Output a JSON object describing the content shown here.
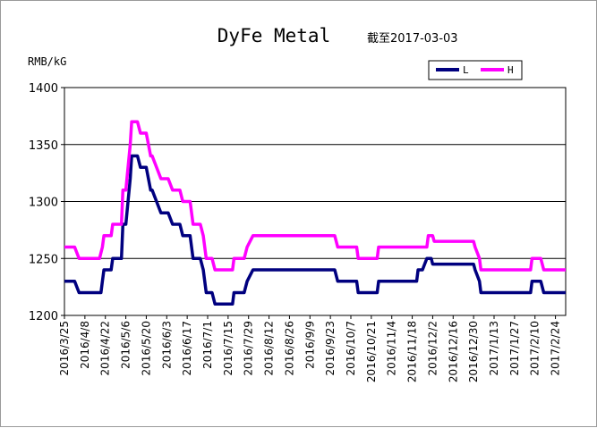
{
  "chart_data": {
    "type": "line",
    "title": "DyFe Metal",
    "as_of": "截至2017-03-03",
    "ylabel": "RMB/kG",
    "ylim": [
      1200,
      1400
    ],
    "yticks": [
      1200,
      1250,
      1300,
      1350,
      1400
    ],
    "grid": "horizontal",
    "legend": "top-right",
    "x_labels": [
      "2016/3/25",
      "2016/4/8",
      "2016/4/22",
      "2016/5/6",
      "2016/5/20",
      "2016/6/3",
      "2016/6/17",
      "2016/7/1",
      "2016/7/15",
      "2016/7/29",
      "2016/8/12",
      "2016/8/26",
      "2016/9/9",
      "2016/9/23",
      "2016/10/7",
      "2016/10/21",
      "2016/11/4",
      "2016/11/18",
      "2016/12/2",
      "2016/12/16",
      "2016/12/30",
      "2017/1/13",
      "2017/1/27",
      "2017/2/10",
      "2017/2/24"
    ],
    "x_range": [
      "2016-03-25",
      "2017-03-03"
    ],
    "series": [
      {
        "name": "L",
        "color": "#00007f",
        "points": [
          [
            "2016-03-25",
            1230
          ],
          [
            "2016-04-01",
            1230
          ],
          [
            "2016-04-04",
            1220
          ],
          [
            "2016-04-19",
            1220
          ],
          [
            "2016-04-20",
            1230
          ],
          [
            "2016-04-21",
            1240
          ],
          [
            "2016-04-26",
            1240
          ],
          [
            "2016-04-27",
            1250
          ],
          [
            "2016-05-03",
            1250
          ],
          [
            "2016-05-04",
            1280
          ],
          [
            "2016-05-06",
            1280
          ],
          [
            "2016-05-09",
            1320
          ],
          [
            "2016-05-10",
            1340
          ],
          [
            "2016-05-14",
            1340
          ],
          [
            "2016-05-16",
            1330
          ],
          [
            "2016-05-20",
            1330
          ],
          [
            "2016-05-23",
            1310
          ],
          [
            "2016-05-24",
            1310
          ],
          [
            "2016-05-27",
            1300
          ],
          [
            "2016-05-30",
            1290
          ],
          [
            "2016-06-04",
            1290
          ],
          [
            "2016-06-07",
            1280
          ],
          [
            "2016-06-12",
            1280
          ],
          [
            "2016-06-14",
            1270
          ],
          [
            "2016-06-19",
            1270
          ],
          [
            "2016-06-21",
            1250
          ],
          [
            "2016-06-26",
            1250
          ],
          [
            "2016-06-28",
            1240
          ],
          [
            "2016-06-30",
            1220
          ],
          [
            "2016-07-04",
            1220
          ],
          [
            "2016-07-06",
            1210
          ],
          [
            "2016-07-18",
            1210
          ],
          [
            "2016-07-19",
            1220
          ],
          [
            "2016-07-26",
            1220
          ],
          [
            "2016-07-28",
            1230
          ],
          [
            "2016-08-01",
            1240
          ],
          [
            "2016-09-26",
            1240
          ],
          [
            "2016-09-28",
            1230
          ],
          [
            "2016-10-11",
            1230
          ],
          [
            "2016-10-12",
            1220
          ],
          [
            "2016-10-25",
            1220
          ],
          [
            "2016-10-26",
            1230
          ],
          [
            "2016-11-21",
            1230
          ],
          [
            "2016-11-22",
            1240
          ],
          [
            "2016-11-25",
            1240
          ],
          [
            "2016-11-28",
            1250
          ],
          [
            "2016-12-01",
            1250
          ],
          [
            "2016-12-02",
            1245
          ],
          [
            "2016-12-30",
            1245
          ],
          [
            "2016-12-31",
            1240
          ],
          [
            "2017-01-03",
            1230
          ],
          [
            "2017-01-04",
            1220
          ],
          [
            "2017-02-07",
            1220
          ],
          [
            "2017-02-08",
            1230
          ],
          [
            "2017-02-14",
            1230
          ],
          [
            "2017-02-16",
            1220
          ],
          [
            "2017-03-03",
            1220
          ]
        ]
      },
      {
        "name": "H",
        "color": "#ff00ff",
        "points": [
          [
            "2016-03-25",
            1260
          ],
          [
            "2016-04-01",
            1260
          ],
          [
            "2016-04-04",
            1250
          ],
          [
            "2016-04-18",
            1250
          ],
          [
            "2016-04-20",
            1260
          ],
          [
            "2016-04-21",
            1270
          ],
          [
            "2016-04-26",
            1270
          ],
          [
            "2016-04-27",
            1280
          ],
          [
            "2016-05-03",
            1280
          ],
          [
            "2016-05-04",
            1310
          ],
          [
            "2016-05-06",
            1310
          ],
          [
            "2016-05-09",
            1350
          ],
          [
            "2016-05-10",
            1370
          ],
          [
            "2016-05-14",
            1370
          ],
          [
            "2016-05-16",
            1360
          ],
          [
            "2016-05-20",
            1360
          ],
          [
            "2016-05-23",
            1340
          ],
          [
            "2016-05-24",
            1340
          ],
          [
            "2016-05-27",
            1330
          ],
          [
            "2016-05-30",
            1320
          ],
          [
            "2016-06-04",
            1320
          ],
          [
            "2016-06-07",
            1310
          ],
          [
            "2016-06-12",
            1310
          ],
          [
            "2016-06-14",
            1300
          ],
          [
            "2016-06-19",
            1300
          ],
          [
            "2016-06-21",
            1280
          ],
          [
            "2016-06-26",
            1280
          ],
          [
            "2016-06-28",
            1270
          ],
          [
            "2016-06-30",
            1250
          ],
          [
            "2016-07-04",
            1250
          ],
          [
            "2016-07-06",
            1240
          ],
          [
            "2016-07-18",
            1240
          ],
          [
            "2016-07-19",
            1250
          ],
          [
            "2016-07-26",
            1250
          ],
          [
            "2016-07-28",
            1260
          ],
          [
            "2016-08-01",
            1270
          ],
          [
            "2016-09-26",
            1270
          ],
          [
            "2016-09-28",
            1260
          ],
          [
            "2016-10-11",
            1260
          ],
          [
            "2016-10-12",
            1250
          ],
          [
            "2016-10-25",
            1250
          ],
          [
            "2016-10-26",
            1260
          ],
          [
            "2016-11-28",
            1260
          ],
          [
            "2016-11-29",
            1270
          ],
          [
            "2016-12-02",
            1270
          ],
          [
            "2016-12-03",
            1265
          ],
          [
            "2016-12-30",
            1265
          ],
          [
            "2016-12-31",
            1260
          ],
          [
            "2017-01-03",
            1250
          ],
          [
            "2017-01-04",
            1240
          ],
          [
            "2017-02-07",
            1240
          ],
          [
            "2017-02-08",
            1250
          ],
          [
            "2017-02-14",
            1250
          ],
          [
            "2017-02-16",
            1240
          ],
          [
            "2017-03-03",
            1240
          ]
        ]
      }
    ]
  }
}
